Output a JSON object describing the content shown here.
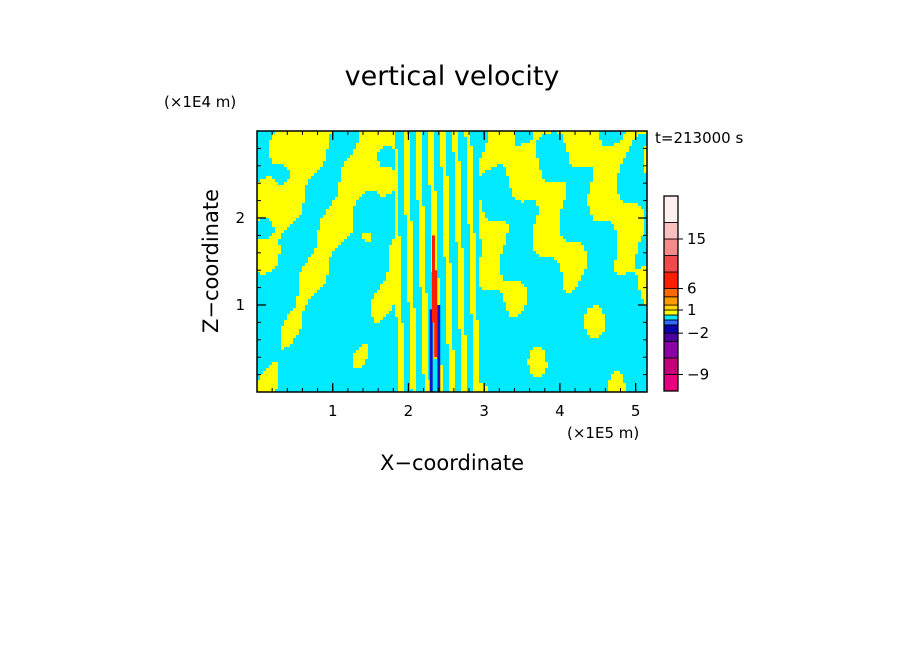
{
  "chart_data": {
    "type": "heatmap",
    "title": "vertical velocity",
    "xlabel": "X−coordinate",
    "ylabel": "Z−coordinate",
    "x_unit": "(×1E5 m)",
    "y_unit": "(×1E4 m)",
    "time_label": "t=213000 s",
    "xlim": [
      0,
      5.15
    ],
    "ylim": [
      0,
      3.0
    ],
    "x_ticks": [
      1,
      2,
      3,
      4,
      5
    ],
    "y_ticks": [
      1,
      2
    ],
    "colorbar": {
      "levels": [
        -12,
        -9,
        -6,
        -4,
        -2,
        -1,
        -0.5,
        0.5,
        1,
        2,
        4,
        6,
        9,
        12,
        15,
        18,
        24
      ],
      "colors": [
        "#e6007f",
        "#c2007a",
        "#8a00a6",
        "#4a009a",
        "#0c00a8",
        "#2f6cff",
        "#00eaff",
        "#ffff00",
        "#ffd500",
        "#ff9a00",
        "#ff6a00",
        "#ff1e00",
        "#ee4c4c",
        "#f48a8a",
        "#f9c0c0",
        "#fff0ee"
      ],
      "tick_labels": [
        "15",
        "6",
        "1",
        "−2",
        "−9"
      ]
    },
    "field_colors": {
      "positive": "#ffff00",
      "negative": "#00eaff",
      "strong_updraft": "#ff1e00",
      "strong_downdraft": "#1414c8"
    }
  }
}
